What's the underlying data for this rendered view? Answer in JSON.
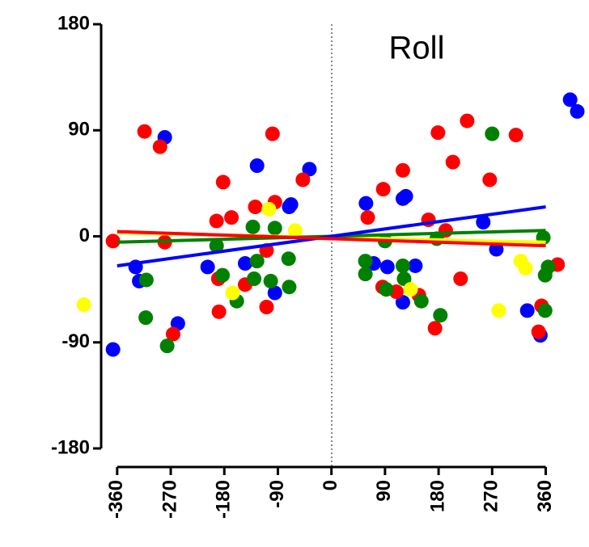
{
  "chart_data": {
    "type": "scatter",
    "title": "Roll",
    "xlim": [
      -425,
      430
    ],
    "ylim": [
      -180,
      180
    ],
    "xticks": [
      -360,
      -270,
      -180,
      -90,
      0,
      90,
      180,
      270,
      360
    ],
    "yticks": [
      180,
      90,
      0,
      -90,
      -180
    ],
    "series": [
      {
        "color": "#0000ff",
        "x": [
          -367,
          -329,
          -323,
          -280,
          -258,
          -208,
          -145,
          -125,
          -95,
          -71,
          -68,
          -37,
          58,
          71,
          94,
          120,
          125,
          120,
          141,
          255,
          277,
          329,
          351,
          401,
          413
        ],
        "values": [
          -96,
          -26,
          -38,
          84,
          -74,
          -26,
          -23,
          60,
          -48,
          25,
          27,
          57,
          28,
          -23,
          -26,
          32,
          34,
          -56,
          -25,
          12,
          -11,
          -63,
          -84,
          116,
          106
        ]
      },
      {
        "color": "#ff0000",
        "x": [
          -367,
          -314,
          -288,
          -280,
          -266,
          -189,
          -193,
          -182,
          -168,
          -190,
          -145,
          -128,
          -109,
          -109,
          -99,
          -95,
          -48,
          61,
          87,
          86,
          120,
          109,
          163,
          147,
          174,
          179,
          192,
          204,
          217,
          228,
          266,
          310,
          353,
          348,
          380
        ],
        "values": [
          -4,
          89,
          76,
          -5,
          -83,
          -64,
          13,
          46,
          16,
          -36,
          -41,
          25,
          -12,
          -60,
          87,
          29,
          48,
          16,
          40,
          -43,
          56,
          -47,
          14,
          -50,
          -78,
          88,
          5,
          63,
          -36,
          98,
          48,
          86,
          -59,
          -81,
          -24
        ]
      },
      {
        "color": "#008000",
        "x": [
          -311,
          -312,
          -276,
          -193,
          -183,
          -159,
          -132,
          -125,
          -130,
          -102,
          -95,
          -72,
          -71,
          57,
          57,
          90,
          92,
          120,
          122,
          151,
          177,
          183,
          270,
          356,
          364,
          359,
          359
        ],
        "values": [
          -37,
          -69,
          -93,
          -8,
          -33,
          -55,
          8,
          -21,
          -36,
          -38,
          7,
          -19,
          -43,
          -21,
          -32,
          -4,
          -45,
          -25,
          -36,
          -55,
          -2,
          -67,
          87,
          -1,
          -26,
          -33,
          -63
        ]
      },
      {
        "color": "#ffff00",
        "x": [
          -416,
          -166,
          -105,
          -61,
          133,
          281,
          318,
          326
        ],
        "values": [
          -58,
          -48,
          23,
          5,
          -45,
          -63,
          -21,
          -27
        ]
      }
    ],
    "fits": [
      {
        "color": "#ffff00",
        "x": [
          -360,
          360
        ],
        "values": [
          3,
          -5
        ]
      },
      {
        "color": "#008000",
        "x": [
          -360,
          360
        ],
        "values": [
          -5,
          5
        ]
      },
      {
        "color": "#0000ff",
        "x": [
          -360,
          360
        ],
        "values": [
          -25,
          25
        ]
      },
      {
        "color": "#ff0000",
        "x": [
          -360,
          360
        ],
        "values": [
          4,
          -8
        ]
      }
    ]
  }
}
